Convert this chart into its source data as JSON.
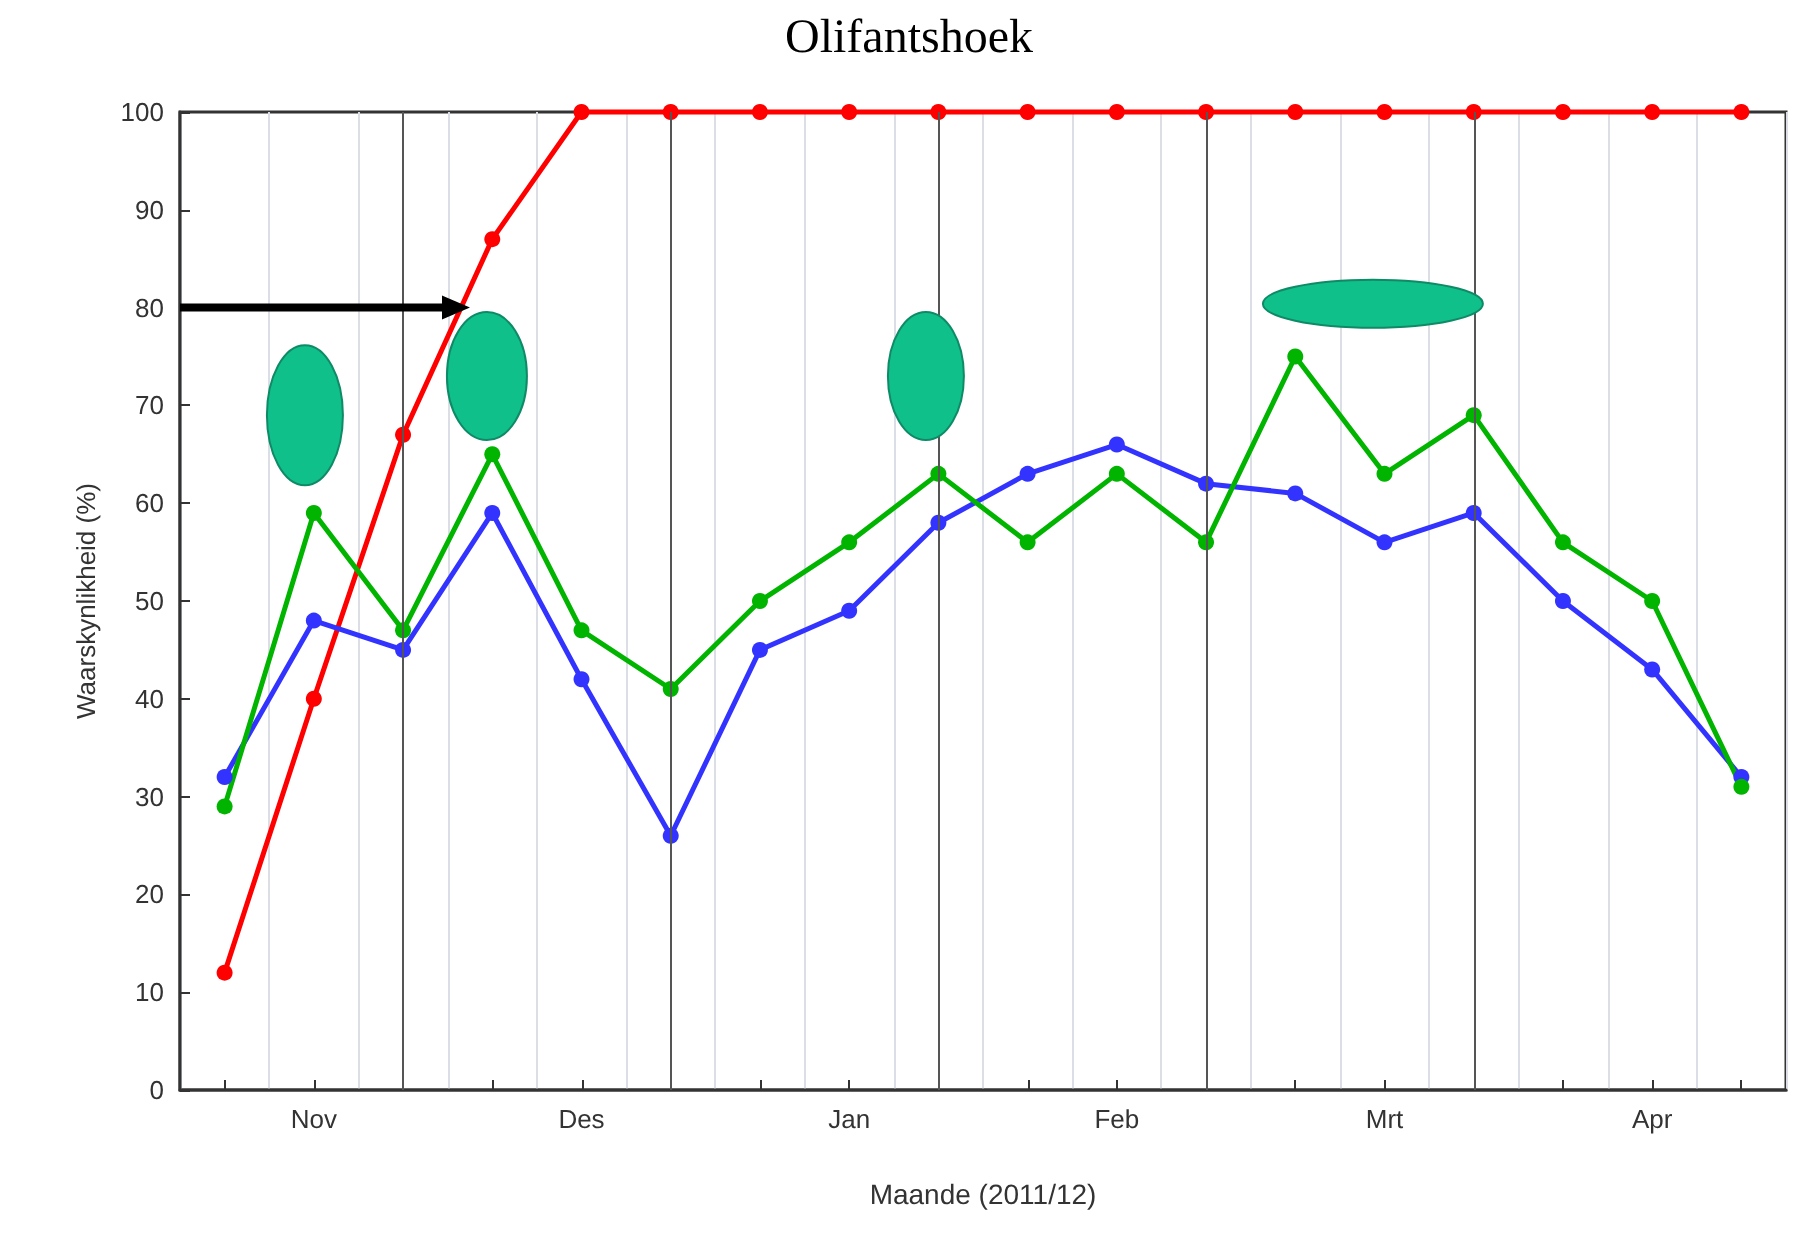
{
  "chart_data": {
    "type": "line",
    "title": "Olifantshoek",
    "xlabel": "Maande (2011/12)",
    "ylabel": "Waarskynlikheid (%)",
    "categories": [
      null,
      "Nov",
      null,
      null,
      "Des",
      null,
      null,
      "Jan",
      null,
      null,
      "Feb",
      null,
      null,
      "Mrt",
      null,
      null,
      "Apr",
      null
    ],
    "ylim": [
      0,
      100
    ],
    "yticks": [
      0,
      10,
      20,
      30,
      40,
      50,
      60,
      70,
      80,
      90,
      100
    ],
    "series": [
      {
        "color": "#ff0000",
        "values": [
          12,
          40,
          67,
          87,
          100,
          100,
          100,
          100,
          100,
          100,
          100,
          100,
          100,
          100,
          100,
          100,
          100,
          100
        ]
      },
      {
        "color": "#3333ff",
        "values": [
          32,
          48,
          45,
          59,
          42,
          26,
          45,
          49,
          58,
          63,
          66,
          62,
          61,
          56,
          59,
          50,
          43,
          32
        ]
      },
      {
        "color": "#00b400",
        "values": [
          29,
          59,
          47,
          65,
          47,
          41,
          50,
          56,
          63,
          56,
          63,
          56,
          75,
          63,
          69,
          56,
          50,
          31
        ]
      }
    ],
    "grid": "x",
    "marker": "circle",
    "line_style": "solid"
  }
}
